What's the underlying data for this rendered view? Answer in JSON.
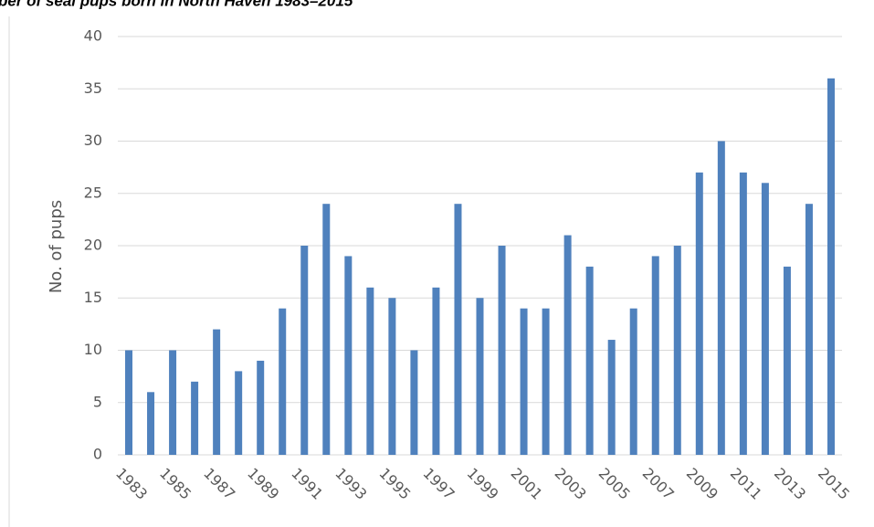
{
  "chart_data": {
    "type": "bar",
    "title": "ber of seal pups born in North Haven 1983–2015",
    "y_label": "No. of pups",
    "categories": [
      "1983",
      null,
      "1985",
      null,
      "1987",
      null,
      "1989",
      null,
      "1991",
      null,
      "1993",
      null,
      "1995",
      null,
      "1997",
      null,
      "1999",
      null,
      "2001",
      null,
      "2003",
      null,
      "2005",
      null,
      "2007",
      null,
      "2009",
      null,
      "2011",
      null,
      "2013",
      null,
      "2015"
    ],
    "values": [
      10,
      6,
      10,
      7,
      12,
      8,
      9,
      14,
      20,
      24,
      19,
      16,
      15,
      10,
      16,
      24,
      15,
      20,
      14,
      14,
      21,
      18,
      11,
      14,
      19,
      20,
      27,
      30,
      27,
      26,
      18,
      24,
      36
    ],
    "color": "#4f81bd",
    "ylim": [
      0,
      40
    ],
    "yticks": [
      0,
      5,
      10,
      15,
      20,
      25,
      30,
      35,
      40
    ],
    "grid": true
  }
}
